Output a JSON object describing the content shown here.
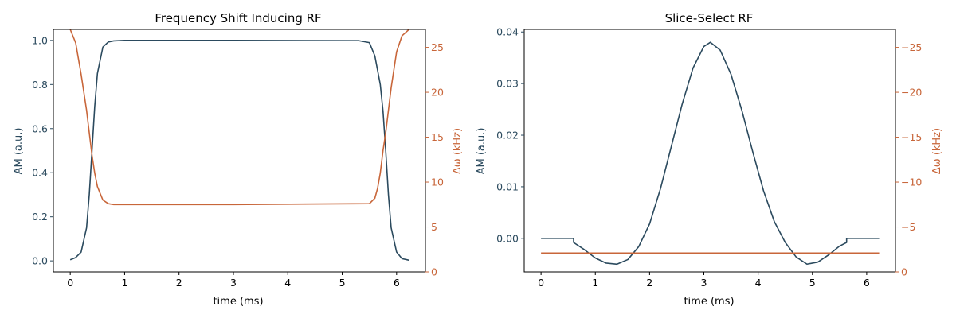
{
  "colors": {
    "am": "#2b4a5e",
    "freq": "#c8663a",
    "axis": "#000000"
  },
  "chart_data": [
    {
      "type": "line",
      "title": "Frequency Shift Inducing RF",
      "xlabel": "time (ms)",
      "ylabel_left": "AM (a.u.)",
      "ylabel_right": "Δω (kHz)",
      "xlim": [
        -0.31,
        6.53
      ],
      "ylim_left": [
        -0.05,
        1.05
      ],
      "ylim_right": [
        0,
        27
      ],
      "xticks": [
        0,
        1,
        2,
        3,
        4,
        5,
        6
      ],
      "yticks_left": [
        "0.0",
        "0.2",
        "0.4",
        "0.6",
        "0.8",
        "1.0"
      ],
      "yticks_right": [
        "0",
        "5",
        "10",
        "15",
        "20",
        "25"
      ],
      "yticks_left_values": [
        0,
        0.2,
        0.4,
        0.6,
        0.8,
        1.0
      ],
      "yticks_right_values": [
        0,
        5,
        10,
        15,
        20,
        25
      ],
      "series": [
        {
          "axis": "left",
          "x": [
            0,
            0.1,
            0.2,
            0.3,
            0.35,
            0.4,
            0.45,
            0.5,
            0.6,
            0.7,
            0.8,
            1.0,
            3.0,
            5.3,
            5.5,
            5.6,
            5.7,
            5.75,
            5.8,
            5.85,
            5.9,
            6.0,
            6.1,
            6.23
          ],
          "y": [
            0.005,
            0.015,
            0.04,
            0.15,
            0.3,
            0.5,
            0.7,
            0.85,
            0.97,
            0.993,
            0.998,
            1.0,
            1.0,
            0.999,
            0.99,
            0.93,
            0.8,
            0.68,
            0.5,
            0.3,
            0.15,
            0.04,
            0.01,
            0.003
          ]
        },
        {
          "axis": "right",
          "x": [
            0,
            0.1,
            0.2,
            0.3,
            0.35,
            0.4,
            0.45,
            0.5,
            0.6,
            0.7,
            0.8,
            1.0,
            3.0,
            5.5,
            5.6,
            5.65,
            5.7,
            5.75,
            5.8,
            5.85,
            5.9,
            6.0,
            6.1,
            6.23
          ],
          "y": [
            27,
            25.5,
            22,
            18,
            15.5,
            13,
            11,
            9.5,
            8.0,
            7.6,
            7.5,
            7.5,
            7.5,
            7.6,
            8.2,
            9.3,
            11,
            13.5,
            15.5,
            18,
            20.5,
            24.5,
            26.3,
            27
          ]
        }
      ]
    },
    {
      "type": "line",
      "title": "Slice-Select RF",
      "xlabel": "time (ms)",
      "ylabel_left": "AM (a.u.)",
      "ylabel_right": "Δω (kHz)",
      "xlim": [
        -0.31,
        6.53
      ],
      "ylim_left": [
        -0.0065,
        0.0405
      ],
      "ylim_right": [
        0,
        -27
      ],
      "xticks": [
        0,
        1,
        2,
        3,
        4,
        5,
        6
      ],
      "yticks_left": [
        "0.00",
        "0.01",
        "0.02",
        "0.03",
        "0.04"
      ],
      "yticks_right": [
        "0",
        "−5",
        "−10",
        "−15",
        "−20",
        "−25"
      ],
      "yticks_left_values": [
        0,
        0.01,
        0.02,
        0.03,
        0.04
      ],
      "yticks_right_values": [
        0,
        -5,
        -10,
        -15,
        -20,
        -25
      ],
      "series": [
        {
          "axis": "left",
          "x": [
            0,
            0.6,
            0.6,
            0.8,
            1.0,
            1.2,
            1.4,
            1.6,
            1.8,
            2.0,
            2.2,
            2.4,
            2.6,
            2.8,
            3.0,
            3.12,
            3.3,
            3.5,
            3.7,
            3.9,
            4.1,
            4.3,
            4.5,
            4.7,
            4.9,
            5.1,
            5.3,
            5.5,
            5.63,
            5.63,
            6.23
          ],
          "y": [
            0,
            0,
            -0.0008,
            -0.0022,
            -0.0038,
            -0.0048,
            -0.005,
            -0.0041,
            -0.0016,
            0.0028,
            0.0096,
            0.0178,
            0.026,
            0.033,
            0.0372,
            0.038,
            0.0365,
            0.0318,
            0.0248,
            0.0168,
            0.0092,
            0.0032,
            -0.0008,
            -0.0036,
            -0.005,
            -0.0046,
            -0.0032,
            -0.0015,
            -0.0008,
            0,
            0
          ]
        },
        {
          "axis": "right",
          "x": [
            0,
            6.23
          ],
          "y": [
            -2.1,
            -2.1
          ]
        }
      ]
    }
  ]
}
